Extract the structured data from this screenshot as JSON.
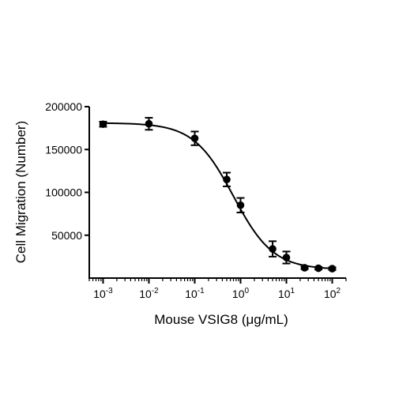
{
  "chart_data": {
    "type": "scatter",
    "title": "",
    "xlabel": "Mouse VSIG8 (μg/mL)",
    "ylabel": "Cell Migration (Number)",
    "x_scale": "log",
    "xlim": [
      0.0005,
      200
    ],
    "ylim": [
      0,
      200000
    ],
    "x_ticks": [
      {
        "value": 0.001,
        "base": "10",
        "exp": "-3"
      },
      {
        "value": 0.01,
        "base": "10",
        "exp": "-2"
      },
      {
        "value": 0.1,
        "base": "10",
        "exp": "-1"
      },
      {
        "value": 1,
        "base": "10",
        "exp": "0"
      },
      {
        "value": 10,
        "base": "10",
        "exp": "1"
      },
      {
        "value": 100,
        "base": "10",
        "exp": "2"
      }
    ],
    "y_ticks": [
      {
        "value": 50000,
        "label": "50000"
      },
      {
        "value": 100000,
        "label": "100000"
      },
      {
        "value": 150000,
        "label": "150000"
      },
      {
        "value": 200000,
        "label": "200000"
      }
    ],
    "grid": false,
    "legend": "none",
    "points": [
      {
        "x": 0.001,
        "y": 179500,
        "err": 3000
      },
      {
        "x": 0.01,
        "y": 180000,
        "err": 7000
      },
      {
        "x": 0.1,
        "y": 163000,
        "err": 8000
      },
      {
        "x": 0.5,
        "y": 115000,
        "err": 8000
      },
      {
        "x": 1,
        "y": 85000,
        "err": 8500
      },
      {
        "x": 5,
        "y": 34000,
        "err": 9000
      },
      {
        "x": 10,
        "y": 24000,
        "err": 7000
      },
      {
        "x": 25,
        "y": 12000,
        "err": 1500
      },
      {
        "x": 50,
        "y": 11500,
        "err": 1500
      },
      {
        "x": 100,
        "y": 11000,
        "err": 1500
      }
    ],
    "fit_curve": {
      "model": "4PL",
      "top": 181000,
      "bottom": 10000,
      "ec50": 0.7,
      "hill": 1.0
    },
    "colors": {
      "marker": "#000000",
      "line": "#000000",
      "axis": "#000000"
    }
  }
}
